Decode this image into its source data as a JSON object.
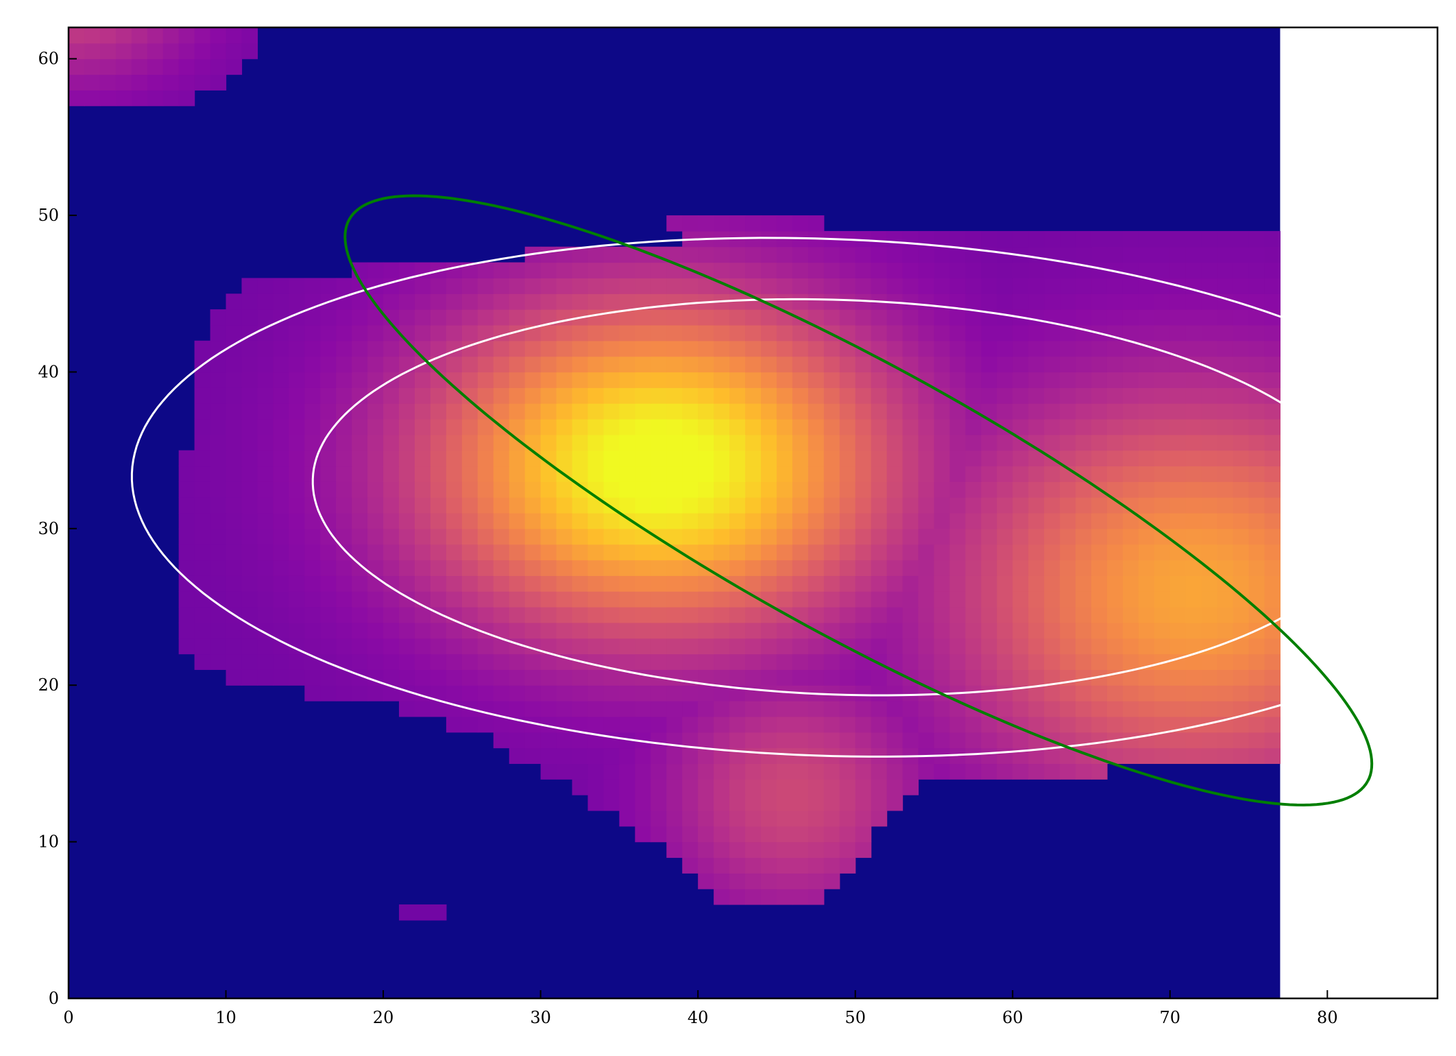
{
  "chart_data": {
    "type": "heatmap",
    "title": "",
    "xlabel": "",
    "ylabel": "",
    "xlim": [
      0,
      87
    ],
    "ylim": [
      0,
      62
    ],
    "image_extent": {
      "x": [
        0,
        77
      ],
      "y": [
        0,
        62
      ]
    },
    "colormap": "plasma",
    "background_color": "#0d0887",
    "grid": false,
    "x_ticks": [
      0,
      10,
      20,
      30,
      40,
      50,
      60,
      70,
      80
    ],
    "y_ticks": [
      0,
      10,
      20,
      30,
      40,
      50,
      60
    ],
    "x_tick_labels": [
      "0",
      "10",
      "20",
      "30",
      "40",
      "50",
      "60",
      "70",
      "80"
    ],
    "y_tick_labels": [
      "0",
      "10",
      "20",
      "30",
      "40",
      "50",
      "60"
    ],
    "blobs": [
      {
        "cx": 37.5,
        "cy": 34.0,
        "sx": 10.5,
        "sy": 7.5,
        "amp": 1.0
      },
      {
        "cx": 71.5,
        "cy": 26.0,
        "sx": 11.0,
        "sy": 9.0,
        "amp": 0.7
      },
      {
        "cx": 46.0,
        "cy": 13.0,
        "sx": 6.0,
        "sy": 5.5,
        "amp": 0.35
      },
      {
        "cx": 0.0,
        "cy": 64.0,
        "sx": 6.0,
        "sy": 4.0,
        "amp": 0.55
      }
    ],
    "mask_rows": [
      {
        "y": 0,
        "x0": 0,
        "x1": 0
      },
      {
        "y": 5,
        "x0": 0,
        "x1": 0
      },
      {
        "y": 6,
        "x0": 41.5,
        "x1": 47.5
      },
      {
        "y": 8,
        "x0": 39.5,
        "x1": 49
      },
      {
        "y": 10,
        "x0": 37,
        "x1": 51
      },
      {
        "y": 12,
        "x0": 34,
        "x1": 52
      },
      {
        "y": 14,
        "x0": 31,
        "x1": 54
      },
      {
        "y": 15,
        "x0": 29,
        "x1": 77
      },
      {
        "y": 17,
        "x0": 26,
        "x1": 77
      },
      {
        "y": 19,
        "x0": 19,
        "x1": 77
      },
      {
        "y": 20,
        "x0": 11,
        "x1": 77
      },
      {
        "y": 21,
        "x0": 9,
        "x1": 77
      },
      {
        "y": 23,
        "x0": 7,
        "x1": 77
      },
      {
        "y": 34,
        "x0": 7,
        "x1": 77
      },
      {
        "y": 35,
        "x0": 8,
        "x1": 77
      },
      {
        "y": 41,
        "x0": 8,
        "x1": 77
      },
      {
        "y": 42,
        "x0": 9,
        "x1": 77
      },
      {
        "y": 45,
        "x0": 10,
        "x1": 77
      },
      {
        "y": 46,
        "x0": 12,
        "x1": 77
      },
      {
        "y": 48,
        "x0": 35,
        "x1": 77
      },
      {
        "y": 49,
        "x0": 43,
        "x1": 77
      },
      {
        "y": 49.2,
        "x0": 61,
        "x1": 77
      },
      {
        "y": 50,
        "x0": 0,
        "x1": 0
      }
    ],
    "corner_blob_rows": [
      {
        "y": 57,
        "x0": 0,
        "x1": 7
      },
      {
        "y": 58,
        "x0": 0,
        "x1": 9
      },
      {
        "y": 59,
        "x0": 0,
        "x1": 10
      },
      {
        "y": 60,
        "x0": 0,
        "x1": 11
      },
      {
        "y": 61,
        "x0": 0,
        "x1": 12
      },
      {
        "y": 62,
        "x0": 0,
        "x1": 12
      }
    ],
    "ellipses": [
      {
        "name": "outer-contour",
        "cx": 48,
        "cy": 32,
        "rx": 44,
        "ry": 16.5,
        "angle": -2,
        "color": "#ffffff"
      },
      {
        "name": "inner-contour",
        "cx": 49,
        "cy": 32,
        "rx": 33.5,
        "ry": 12.6,
        "angle": -2,
        "color": "#ffffff"
      },
      {
        "name": "green-ellipse",
        "cx": 50.2,
        "cy": 31.8,
        "rx": 37,
        "ry": 8.6,
        "angle": -29,
        "color": "#007f00"
      }
    ]
  }
}
